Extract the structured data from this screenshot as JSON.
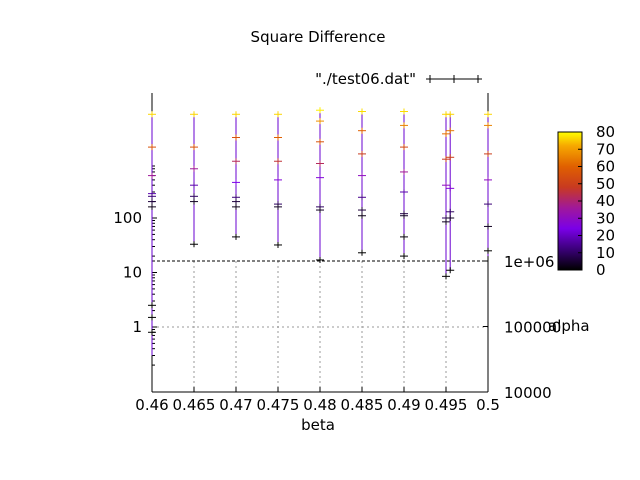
{
  "chart_data": {
    "type": "scatter",
    "title": "Square Difference",
    "xlabel": "beta",
    "ylabel": "",
    "y2label": "",
    "legend": {
      "label": "\"./test06.dat\"",
      "placement": "top-right"
    },
    "xlim": [
      0.46,
      0.5
    ],
    "x_ticks": [
      "0.46",
      "0.465",
      "0.47",
      "0.475",
      "0.48",
      "0.485",
      "0.49",
      "0.495",
      "0.5"
    ],
    "y_scale": "log",
    "y_ticks": [
      {
        "value": 1,
        "label": "1"
      },
      {
        "value": 10,
        "label": "10"
      },
      {
        "value": 100,
        "label": "100"
      }
    ],
    "y2_ticks": [
      {
        "value": 10000,
        "label": "10000"
      },
      {
        "value": 100000,
        "label": "100000"
      },
      {
        "value": 1000000,
        "label": "1e+06"
      }
    ],
    "grid": true,
    "colorbar": {
      "label": "alpha",
      "range": [
        0,
        80
      ],
      "ticks": [
        "0",
        "10",
        "20",
        "30",
        "40",
        "50",
        "60",
        "70",
        "80"
      ]
    },
    "series": [
      {
        "points": [
          {
            "x": 0.46,
            "y_min": 0.3,
            "y_max": 8000,
            "markers": [
              {
                "y": 8000,
                "alpha": 75
              },
              {
                "y": 2000,
                "alpha": 50
              },
              {
                "y": 600,
                "alpha": 30
              },
              {
                "y": 280,
                "alpha": 15
              },
              {
                "y": 250,
                "alpha": 10
              },
              {
                "y": 200,
                "alpha": 5
              },
              {
                "y": 160,
                "alpha": 2
              },
              {
                "y": 2.5,
                "alpha": 0
              },
              {
                "y": 1.5,
                "alpha": 0
              },
              {
                "y": 0.8,
                "alpha": 0
              }
            ]
          },
          {
            "x": 0.465,
            "y_min": 30,
            "y_max": 8000,
            "markers": [
              {
                "y": 8000,
                "alpha": 75
              },
              {
                "y": 2000,
                "alpha": 50
              },
              {
                "y": 800,
                "alpha": 30
              },
              {
                "y": 400,
                "alpha": 15
              },
              {
                "y": 250,
                "alpha": 8
              },
              {
                "y": 200,
                "alpha": 3
              },
              {
                "y": 33,
                "alpha": 0
              }
            ]
          },
          {
            "x": 0.47,
            "y_min": 40,
            "y_max": 8000,
            "markers": [
              {
                "y": 8000,
                "alpha": 75
              },
              {
                "y": 3000,
                "alpha": 50
              },
              {
                "y": 1100,
                "alpha": 35
              },
              {
                "y": 450,
                "alpha": 20
              },
              {
                "y": 240,
                "alpha": 10
              },
              {
                "y": 200,
                "alpha": 5
              },
              {
                "y": 160,
                "alpha": 2
              },
              {
                "y": 45,
                "alpha": 0
              }
            ]
          },
          {
            "x": 0.475,
            "y_min": 30,
            "y_max": 8000,
            "markers": [
              {
                "y": 8000,
                "alpha": 75
              },
              {
                "y": 3000,
                "alpha": 55
              },
              {
                "y": 1100,
                "alpha": 38
              },
              {
                "y": 500,
                "alpha": 22
              },
              {
                "y": 180,
                "alpha": 8
              },
              {
                "y": 160,
                "alpha": 3
              },
              {
                "y": 32,
                "alpha": 0
              }
            ]
          },
          {
            "x": 0.48,
            "y_min": 17,
            "y_max": 9500,
            "markers": [
              {
                "y": 9500,
                "alpha": 78
              },
              {
                "y": 6000,
                "alpha": 65
              },
              {
                "y": 2500,
                "alpha": 50
              },
              {
                "y": 1000,
                "alpha": 35
              },
              {
                "y": 550,
                "alpha": 22
              },
              {
                "y": 160,
                "alpha": 8
              },
              {
                "y": 140,
                "alpha": 3
              },
              {
                "y": 17,
                "alpha": 0
              }
            ]
          },
          {
            "x": 0.485,
            "y_min": 22,
            "y_max": 9000,
            "markers": [
              {
                "y": 9000,
                "alpha": 76
              },
              {
                "y": 4000,
                "alpha": 55
              },
              {
                "y": 1500,
                "alpha": 40
              },
              {
                "y": 600,
                "alpha": 25
              },
              {
                "y": 240,
                "alpha": 12
              },
              {
                "y": 140,
                "alpha": 5
              },
              {
                "y": 110,
                "alpha": 2
              },
              {
                "y": 23,
                "alpha": 0
              }
            ]
          },
          {
            "x": 0.49,
            "y_min": 20,
            "y_max": 9000,
            "markers": [
              {
                "y": 9000,
                "alpha": 76
              },
              {
                "y": 5000,
                "alpha": 62
              },
              {
                "y": 2000,
                "alpha": 45
              },
              {
                "y": 700,
                "alpha": 30
              },
              {
                "y": 300,
                "alpha": 15
              },
              {
                "y": 120,
                "alpha": 6
              },
              {
                "y": 110,
                "alpha": 3
              },
              {
                "y": 45,
                "alpha": 1
              },
              {
                "y": 20,
                "alpha": 0
              }
            ]
          },
          {
            "x": 0.495,
            "y_min": 8,
            "y_max": 8000,
            "markers": [
              {
                "y": 8000,
                "alpha": 75
              },
              {
                "y": 3500,
                "alpha": 58
              },
              {
                "y": 1200,
                "alpha": 40
              },
              {
                "y": 400,
                "alpha": 25
              },
              {
                "y": 100,
                "alpha": 8
              },
              {
                "y": 85,
                "alpha": 3
              },
              {
                "y": 8.5,
                "alpha": 0
              }
            ]
          },
          {
            "x": 0.4955,
            "y_min": 11,
            "y_max": 8000,
            "markers": [
              {
                "y": 8000,
                "alpha": 75
              },
              {
                "y": 4000,
                "alpha": 60
              },
              {
                "y": 1300,
                "alpha": 42
              },
              {
                "y": 350,
                "alpha": 22
              },
              {
                "y": 130,
                "alpha": 8
              },
              {
                "y": 100,
                "alpha": 3
              },
              {
                "y": 11,
                "alpha": 0
              }
            ]
          },
          {
            "x": 0.5,
            "y_min": 20,
            "y_max": 8000,
            "markers": [
              {
                "y": 8000,
                "alpha": 75
              },
              {
                "y": 5000,
                "alpha": 62
              },
              {
                "y": 1500,
                "alpha": 42
              },
              {
                "y": 500,
                "alpha": 25
              },
              {
                "y": 180,
                "alpha": 10
              },
              {
                "y": 70,
                "alpha": 3
              },
              {
                "y": 25,
                "alpha": 0
              }
            ]
          }
        ]
      }
    ]
  }
}
